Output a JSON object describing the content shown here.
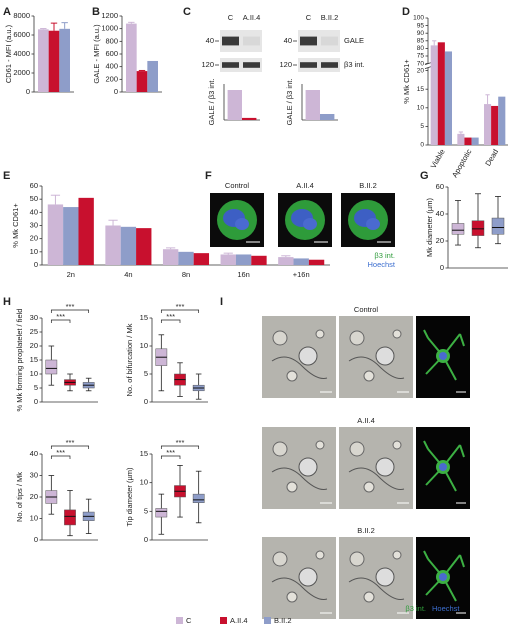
{
  "legend": [
    {
      "name": "C",
      "color": "#cdb6d6"
    },
    {
      "name": "A.II.4",
      "color": "#c8102e"
    },
    {
      "name": "B.II.2",
      "color": "#8e9dc9"
    }
  ],
  "panel_f": {
    "panel": "F",
    "titles": [
      "Control",
      "A.II.4",
      "B.II.2"
    ],
    "stains": [
      "β3 int.",
      "Hoechst"
    ]
  },
  "panel_i": {
    "panel": "I",
    "rows": [
      "Control",
      "A.II.4",
      "B.II.2"
    ],
    "stains": [
      "β3 int.",
      "Hoechst"
    ]
  },
  "chart_data": [
    {
      "type": "bar",
      "panel": "A",
      "ylabel": "CD61 - MFI (a.u.)",
      "ylim": [
        0,
        8000
      ],
      "yticks": [
        0,
        2000,
        4000,
        6000,
        8000
      ],
      "series": [
        {
          "color": "#cdb6d6",
          "values": [
            6600
          ],
          "errors": [
            80
          ]
        },
        {
          "color": "#c8102e",
          "values": [
            6450
          ],
          "errors": [
            800
          ]
        },
        {
          "color": "#8e9dc9",
          "values": [
            6650
          ],
          "errors": [
            650
          ]
        }
      ]
    },
    {
      "type": "bar",
      "panel": "B",
      "ylabel": "GALE - MFI (a.u.)",
      "ylim": [
        0,
        1200
      ],
      "yticks": [
        0,
        200,
        400,
        600,
        800,
        1000,
        1200
      ],
      "series": [
        {
          "color": "#cdb6d6",
          "values": [
            1080
          ],
          "errors": [
            20
          ]
        },
        {
          "color": "#c8102e",
          "values": [
            330
          ],
          "errors": [
            10
          ]
        },
        {
          "color": "#8e9dc9",
          "values": [
            490
          ]
        }
      ]
    },
    {
      "type": "bar",
      "panel": "C",
      "ylabel": "GALE / β3 int.",
      "ylim": [
        0,
        1.2
      ],
      "blot": {
        "lanes": [
          "C",
          "A.II.4"
        ],
        "markers": [
          "40",
          "120"
        ]
      },
      "series": [
        {
          "color": "#cdb6d6",
          "values": [
            1
          ]
        },
        {
          "color": "#c8102e",
          "values": [
            0.07
          ]
        }
      ]
    },
    {
      "type": "bar",
      "ylabel": "GALE / β3 int.",
      "ylim": [
        0,
        1.2
      ],
      "blot": {
        "lanes": [
          "C",
          "B.II.2"
        ],
        "markers": [
          "40",
          "120"
        ],
        "bands": [
          "GALE",
          "β3 int."
        ]
      },
      "series": [
        {
          "color": "#cdb6d6",
          "values": [
            1
          ]
        },
        {
          "color": "#8e9dc9",
          "values": [
            0.2
          ]
        }
      ]
    },
    {
      "type": "bar",
      "panel": "D",
      "ylabel": "% Mk CD61+",
      "ylim": [
        0,
        100
      ],
      "ybreak": [
        20,
        70
      ],
      "yticks": [
        0,
        5,
        10,
        15,
        20,
        70,
        75,
        80,
        85,
        90,
        95,
        100
      ],
      "categories": [
        "Viable",
        "Apoptotic",
        "Dead"
      ],
      "series": [
        {
          "color": "#cdb6d6",
          "values": [
            82,
            3,
            11
          ],
          "errors": [
            3,
            0.5,
            2.5
          ]
        },
        {
          "color": "#c8102e",
          "values": [
            84,
            2,
            10.5
          ]
        },
        {
          "color": "#8e9dc9",
          "values": [
            78,
            2,
            13
          ]
        }
      ]
    },
    {
      "type": "bar",
      "panel": "E",
      "ylabel": "% Mk CD61+",
      "ylim": [
        0,
        60
      ],
      "yticks": [
        0,
        10,
        20,
        30,
        40,
        50,
        60
      ],
      "categories": [
        "2n",
        "4n",
        "8n",
        "16n",
        "+16n"
      ],
      "series": [
        {
          "color": "#cdb6d6",
          "values": [
            46,
            30,
            12,
            8,
            6
          ],
          "errors": [
            7,
            4,
            1,
            1,
            1
          ]
        },
        {
          "color": "#8e9dc9",
          "values": [
            44,
            29,
            10,
            8,
            5
          ]
        },
        {
          "color": "#c8102e",
          "values": [
            51,
            28,
            9,
            7,
            4
          ]
        }
      ]
    },
    {
      "type": "box",
      "panel": "G",
      "ylabel": "Mk diameter (µm)",
      "ylim": [
        0,
        60
      ],
      "yticks": [
        0,
        20,
        40,
        60
      ],
      "boxes": [
        {
          "color": "#cdb6d6",
          "min": 17,
          "q1": 25,
          "median": 28,
          "q3": 33,
          "max": 50
        },
        {
          "color": "#c8102e",
          "min": 15,
          "q1": 24,
          "median": 29,
          "q3": 35,
          "max": 55
        },
        {
          "color": "#8e9dc9",
          "min": 18,
          "q1": 25,
          "median": 30,
          "q3": 37,
          "max": 53
        }
      ]
    },
    {
      "type": "box",
      "panel": "H",
      "ylabel": "% Mk forming proplatelet / field",
      "ylim": [
        0,
        30
      ],
      "yticks": [
        0,
        5,
        10,
        15,
        20,
        25,
        30
      ],
      "annotations": [
        "***",
        "***"
      ],
      "boxes": [
        {
          "color": "#cdb6d6",
          "min": 6,
          "q1": 10,
          "median": 12,
          "q3": 15,
          "max": 20
        },
        {
          "color": "#c8102e",
          "min": 4,
          "q1": 6,
          "median": 7,
          "q3": 8,
          "max": 10
        },
        {
          "color": "#8e9dc9",
          "min": 4,
          "q1": 5,
          "median": 6,
          "q3": 7,
          "max": 8.5
        }
      ]
    },
    {
      "type": "box",
      "ylabel": "No. of bifurcation / Mk",
      "ylim": [
        0,
        15
      ],
      "yticks": [
        0,
        5,
        10,
        15
      ],
      "annotations": [
        "***",
        "***"
      ],
      "boxes": [
        {
          "color": "#cdb6d6",
          "min": 2,
          "q1": 6.5,
          "median": 8,
          "q3": 9.5,
          "max": 12
        },
        {
          "color": "#c8102e",
          "min": 1,
          "q1": 3,
          "median": 4,
          "q3": 5,
          "max": 7
        },
        {
          "color": "#8e9dc9",
          "min": 0.5,
          "q1": 2,
          "median": 2.5,
          "q3": 3,
          "max": 5
        }
      ]
    },
    {
      "type": "box",
      "ylabel": "No. of tips / Mk",
      "ylim": [
        0,
        40
      ],
      "yticks": [
        0,
        10,
        20,
        30,
        40
      ],
      "annotations": [
        "***",
        "***"
      ],
      "boxes": [
        {
          "color": "#cdb6d6",
          "min": 12,
          "q1": 17,
          "median": 20,
          "q3": 23,
          "max": 30
        },
        {
          "color": "#c8102e",
          "min": 2,
          "q1": 7,
          "median": 11,
          "q3": 14,
          "max": 23
        },
        {
          "color": "#8e9dc9",
          "min": 3,
          "q1": 9,
          "median": 11,
          "q3": 13,
          "max": 19
        }
      ]
    },
    {
      "type": "box",
      "ylabel": "Tip diameter (µm)",
      "ylim": [
        0,
        15
      ],
      "yticks": [
        0,
        5,
        10,
        15
      ],
      "annotations": [
        "***",
        "***"
      ],
      "boxes": [
        {
          "color": "#cdb6d6",
          "min": 1,
          "q1": 4,
          "median": 5,
          "q3": 5.5,
          "max": 8
        },
        {
          "color": "#c8102e",
          "min": 4,
          "q1": 7.5,
          "median": 8.5,
          "q3": 9.5,
          "max": 13
        },
        {
          "color": "#8e9dc9",
          "min": 3,
          "q1": 6.5,
          "median": 7,
          "q3": 8,
          "max": 12
        }
      ]
    }
  ]
}
